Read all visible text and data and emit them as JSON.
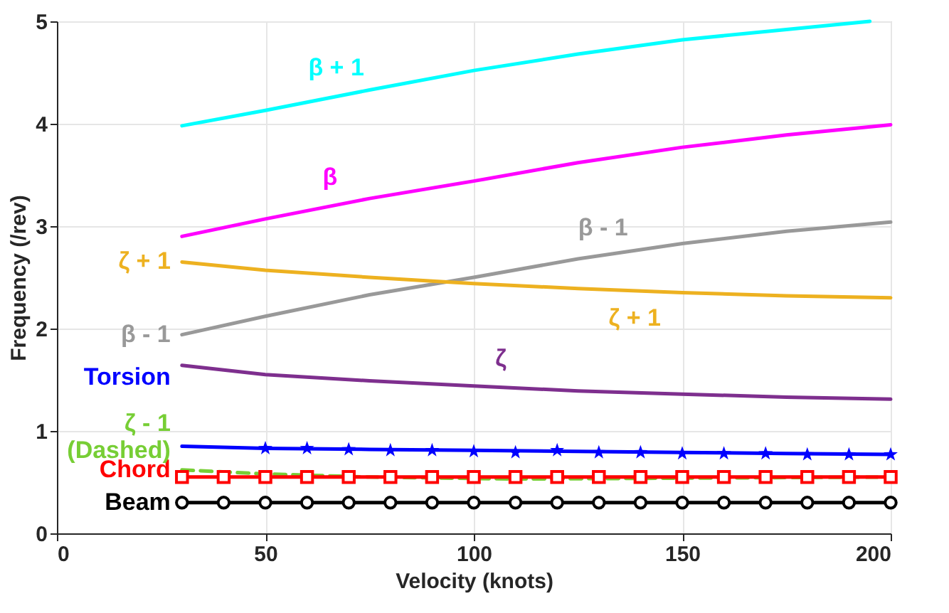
{
  "chart_data": {
    "type": "line",
    "xlabel": "Velocity (knots)",
    "ylabel": "Frequency (/rev)",
    "xlim": [
      0,
      200
    ],
    "xticks": [
      0,
      50,
      100,
      150,
      200
    ],
    "ylim": [
      0,
      5
    ],
    "yticks": [
      0,
      1,
      2,
      3,
      4,
      5
    ],
    "grid": true,
    "legend": false,
    "marker": "none",
    "line_style": "solid",
    "series": [
      {
        "color": "#00ffff",
        "x": [
          30,
          50,
          75,
          100,
          125,
          150,
          175,
          195
        ],
        "values": [
          3.98,
          4.13,
          4.33,
          4.52,
          4.68,
          4.82,
          4.92,
          5.0
        ]
      },
      {
        "color": "#ff00ff",
        "x": [
          30,
          50,
          75,
          100,
          125,
          150,
          175,
          200
        ],
        "values": [
          2.9,
          3.07,
          3.27,
          3.44,
          3.62,
          3.77,
          3.89,
          3.99
        ]
      },
      {
        "name": "β - 1",
        "color": "#999999",
        "x": [
          30,
          50,
          75,
          100,
          125,
          150,
          175,
          200
        ],
        "values": [
          1.94,
          2.12,
          2.33,
          2.5,
          2.68,
          2.83,
          2.95,
          3.04
        ]
      },
      {
        "name": "ζ + 1",
        "color": "#edb120",
        "x": [
          30,
          50,
          75,
          100,
          125,
          150,
          175,
          200
        ],
        "values": [
          2.65,
          2.57,
          2.5,
          2.44,
          2.39,
          2.35,
          2.32,
          2.3
        ]
      },
      {
        "color": "#7e2f8e",
        "x": [
          30,
          50,
          75,
          100,
          125,
          150,
          175,
          200
        ],
        "values": [
          1.64,
          1.55,
          1.49,
          1.44,
          1.39,
          1.36,
          1.33,
          1.31
        ]
      },
      {
        "name": "ζ - 1\n(Dashed)",
        "color": "#77ce35",
        "line_style": "dashed",
        "x": [
          30,
          50,
          75,
          110,
          200
        ],
        "values": [
          0.62,
          0.58,
          0.55,
          0.53,
          0.55
        ]
      },
      {
        "name": "Torsion",
        "color": "#0000ff",
        "x": [
          30,
          50,
          75,
          100,
          125,
          150,
          175,
          200
        ],
        "values": [
          0.85,
          0.83,
          0.82,
          0.81,
          0.8,
          0.79,
          0.78,
          0.77
        ]
      },
      {
        "type": "scatter",
        "marker": "star",
        "color": "#0000ff",
        "x": [
          50,
          60,
          70,
          80,
          90,
          100,
          110,
          120,
          130,
          140,
          150,
          160,
          170,
          180,
          190,
          200
        ],
        "values": [
          0.83,
          0.83,
          0.82,
          0.81,
          0.81,
          0.8,
          0.79,
          0.81,
          0.79,
          0.79,
          0.78,
          0.78,
          0.78,
          0.77,
          0.77,
          0.77
        ]
      },
      {
        "name": "Chord",
        "marker": "square",
        "color": "#ff0000",
        "x": [
          30,
          40,
          50,
          60,
          70,
          80,
          90,
          100,
          110,
          120,
          130,
          140,
          150,
          160,
          170,
          180,
          190,
          200
        ],
        "values": [
          0.55,
          0.55,
          0.55,
          0.55,
          0.55,
          0.55,
          0.55,
          0.55,
          0.55,
          0.55,
          0.55,
          0.55,
          0.55,
          0.55,
          0.55,
          0.55,
          0.55,
          0.55
        ]
      },
      {
        "name": "Beam",
        "marker": "circle",
        "color": "#000000",
        "x": [
          30,
          40,
          50,
          60,
          70,
          80,
          90,
          100,
          110,
          120,
          130,
          140,
          150,
          160,
          170,
          180,
          190,
          200
        ],
        "values": [
          0.3,
          0.3,
          0.3,
          0.3,
          0.3,
          0.3,
          0.3,
          0.3,
          0.3,
          0.3,
          0.3,
          0.3,
          0.3,
          0.3,
          0.3,
          0.3,
          0.3,
          0.3
        ]
      }
    ],
    "annotations": [
      {
        "text": "β + 1",
        "x": 67,
        "y": 4.32
      },
      {
        "text": "β",
        "x": 65.5,
        "y": 3.25
      },
      {
        "text": "β - 1",
        "x": 131,
        "y": 2.76
      },
      {
        "text": "ζ + 1",
        "x": 138.6,
        "y": 2.32
      },
      {
        "text": "ζ",
        "x": 106.5,
        "y": 1.48
      }
    ]
  }
}
